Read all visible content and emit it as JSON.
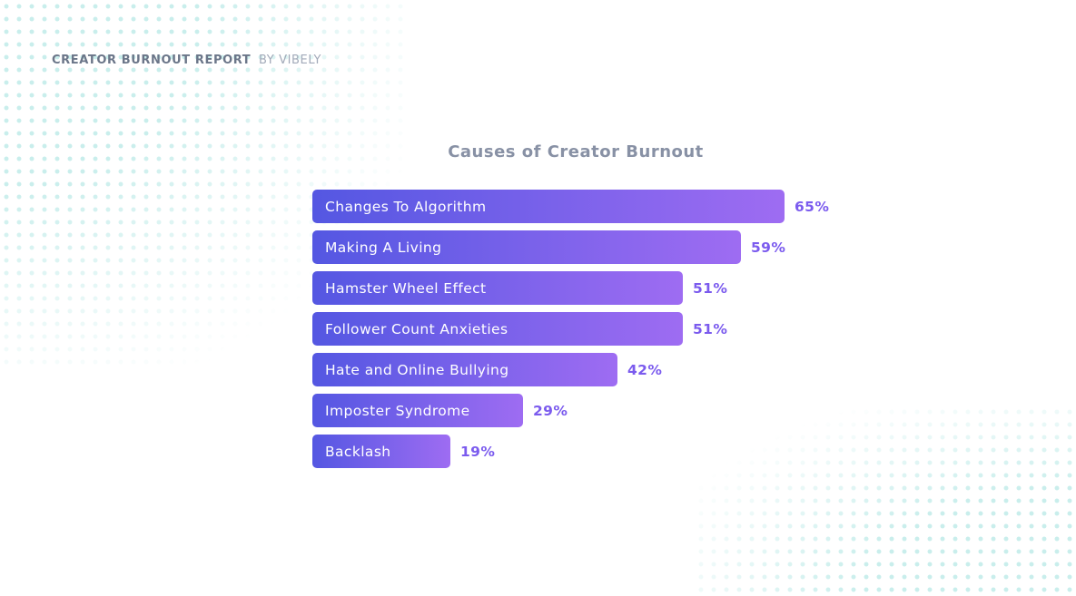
{
  "page": {
    "background": "#ffffff",
    "dot_pattern_color": "#c9eeec"
  },
  "header": {
    "report_title": "CREATOR BURNOUT REPORT",
    "byline": "BY VIBELY"
  },
  "chart_data": {
    "type": "bar",
    "orientation": "horizontal",
    "title": "Causes of Creator Burnout",
    "categories": [
      "Changes To Algorithm",
      "Making A Living",
      "Hamster Wheel Effect",
      "Follower Count Anxieties",
      "Hate and Online Bullying",
      "Imposter Syndrome",
      "Backlash"
    ],
    "values": [
      65,
      59,
      51,
      51,
      42,
      29,
      19
    ],
    "value_suffix": "%",
    "xlim": [
      0,
      65
    ],
    "grid": false,
    "legend": false,
    "value_labels_position": "right-of-bar",
    "colors": {
      "bar_gradient_start": "#5457e2",
      "bar_gradient_end": "#9e6cf2",
      "value_label": "#7b5bee",
      "title": "#8891a5",
      "bar_text": "#ffffff"
    }
  }
}
